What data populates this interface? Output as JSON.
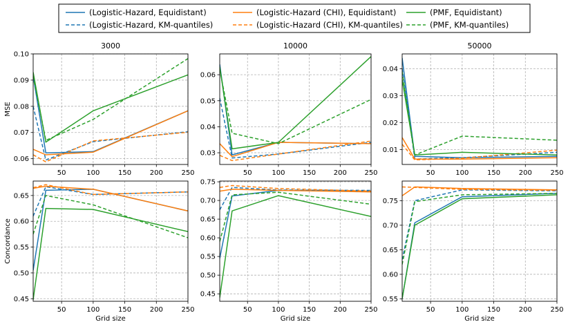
{
  "colors": {
    "logistic_hazard": "#1f77b4",
    "logistic_hazard_chi": "#ff7f0e",
    "pmf": "#2ca02c",
    "grid": "#b0b0b0"
  },
  "legend": [
    {
      "label": "(Logistic-Hazard, Equidistant)",
      "color": "#1f77b4",
      "dash": "solid"
    },
    {
      "label": "(Logistic-Hazard, KM-quantiles)",
      "color": "#1f77b4",
      "dash": "dashed"
    },
    {
      "label": "(Logistic-Hazard (CHI), Equidistant)",
      "color": "#ff7f0e",
      "dash": "solid"
    },
    {
      "label": "(Logistic-Hazard (CHI), KM-quantiles)",
      "color": "#ff7f0e",
      "dash": "dashed"
    },
    {
      "label": "(PMF, Equidistant)",
      "color": "#2ca02c",
      "dash": "solid"
    },
    {
      "label": "(PMF, KM-quantiles)",
      "color": "#2ca02c",
      "dash": "dashed"
    }
  ],
  "chart_data": [
    {
      "type": "line",
      "metric": "MSE",
      "title": "3000",
      "xlabel": "",
      "ylabel": "MSE",
      "x": [
        5,
        25,
        100,
        250
      ],
      "xlim": [
        5,
        250
      ],
      "ylim": [
        0.0578,
        0.1
      ],
      "xticks": [
        50,
        100,
        150,
        200,
        250
      ],
      "yticks": [
        0.06,
        0.07,
        0.08,
        0.09,
        0.1
      ],
      "ytick_labels": [
        "0.06",
        "0.07",
        "0.08",
        "0.09",
        "0.10"
      ],
      "series": [
        {
          "name": "(Logistic-Hazard, Equidistant)",
          "color": "#1f77b4",
          "dash": "solid",
          "values": [
            0.0915,
            0.0622,
            0.0627,
            0.0783
          ]
        },
        {
          "name": "(Logistic-Hazard, KM-quantiles)",
          "color": "#1f77b4",
          "dash": "dashed",
          "values": [
            0.08,
            0.0595,
            0.0665,
            0.0703
          ]
        },
        {
          "name": "(Logistic-Hazard (CHI), Equidistant)",
          "color": "#ff7f0e",
          "dash": "solid",
          "values": [
            0.0636,
            0.0615,
            0.0625,
            0.0783
          ]
        },
        {
          "name": "(Logistic-Hazard (CHI), KM-quantiles)",
          "color": "#ff7f0e",
          "dash": "dashed",
          "values": [
            0.0615,
            0.0588,
            0.0668,
            0.0701
          ]
        },
        {
          "name": "(PMF, Equidistant)",
          "color": "#2ca02c",
          "dash": "solid",
          "values": [
            0.093,
            0.0663,
            0.0783,
            0.092
          ]
        },
        {
          "name": "(PMF, KM-quantiles)",
          "color": "#2ca02c",
          "dash": "dashed",
          "values": [
            0.0915,
            0.067,
            0.075,
            0.0982
          ]
        }
      ]
    },
    {
      "type": "line",
      "metric": "MSE",
      "title": "10000",
      "xlabel": "",
      "ylabel": "",
      "x": [
        5,
        25,
        100,
        250
      ],
      "xlim": [
        5,
        250
      ],
      "ylim": [
        0.0255,
        0.068
      ],
      "xticks": [
        50,
        100,
        150,
        200,
        250
      ],
      "yticks": [
        0.03,
        0.04,
        0.05,
        0.06
      ],
      "ytick_labels": [
        "0.03",
        "0.04",
        "0.05",
        "0.06"
      ],
      "series": [
        {
          "name": "(Logistic-Hazard, Equidistant)",
          "color": "#1f77b4",
          "dash": "solid",
          "values": [
            0.064,
            0.0292,
            0.034,
            0.0335
          ]
        },
        {
          "name": "(Logistic-Hazard, KM-quantiles)",
          "color": "#1f77b4",
          "dash": "dashed",
          "values": [
            0.051,
            0.028,
            0.0295,
            0.034
          ]
        },
        {
          "name": "(Logistic-Hazard (CHI), Equidistant)",
          "color": "#ff7f0e",
          "dash": "solid",
          "values": [
            0.0335,
            0.0285,
            0.034,
            0.0335
          ]
        },
        {
          "name": "(Logistic-Hazard (CHI), KM-quantiles)",
          "color": "#ff7f0e",
          "dash": "dashed",
          "values": [
            0.029,
            0.027,
            0.0295,
            0.0345
          ]
        },
        {
          "name": "(PMF, Equidistant)",
          "color": "#2ca02c",
          "dash": "solid",
          "values": [
            0.063,
            0.0315,
            0.034,
            0.067
          ]
        },
        {
          "name": "(PMF, KM-quantiles)",
          "color": "#2ca02c",
          "dash": "dashed",
          "values": [
            0.062,
            0.0375,
            0.0335,
            0.0505
          ]
        }
      ]
    },
    {
      "type": "line",
      "metric": "MSE",
      "title": "50000",
      "xlabel": "",
      "ylabel": "",
      "x": [
        5,
        25,
        100,
        250
      ],
      "xlim": [
        5,
        250
      ],
      "ylim": [
        0.0045,
        0.0455
      ],
      "xticks": [
        50,
        100,
        150,
        200,
        250
      ],
      "yticks": [
        0.01,
        0.02,
        0.03,
        0.04
      ],
      "ytick_labels": [
        "0.01",
        "0.02",
        "0.03",
        "0.04"
      ],
      "series": [
        {
          "name": "(Logistic-Hazard, Equidistant)",
          "color": "#1f77b4",
          "dash": "solid",
          "values": [
            0.044,
            0.0075,
            0.007,
            0.0075
          ]
        },
        {
          "name": "(Logistic-Hazard, KM-quantiles)",
          "color": "#1f77b4",
          "dash": "dashed",
          "values": [
            0.04,
            0.0065,
            0.007,
            0.009
          ]
        },
        {
          "name": "(Logistic-Hazard (CHI), Equidistant)",
          "color": "#ff7f0e",
          "dash": "solid",
          "values": [
            0.0145,
            0.0065,
            0.0065,
            0.007
          ]
        },
        {
          "name": "(Logistic-Hazard (CHI), KM-quantiles)",
          "color": "#ff7f0e",
          "dash": "dashed",
          "values": [
            0.012,
            0.0062,
            0.0068,
            0.0098
          ]
        },
        {
          "name": "(PMF, Equidistant)",
          "color": "#2ca02c",
          "dash": "solid",
          "values": [
            0.036,
            0.008,
            0.009,
            0.008
          ]
        },
        {
          "name": "(PMF, KM-quantiles)",
          "color": "#2ca02c",
          "dash": "dashed",
          "values": [
            0.039,
            0.008,
            0.015,
            0.0135
          ]
        }
      ]
    },
    {
      "type": "line",
      "metric": "Concordance",
      "title": "",
      "xlabel": "Grid size",
      "ylabel": "Concordance",
      "x": [
        5,
        25,
        100,
        250
      ],
      "xlim": [
        5,
        250
      ],
      "ylim": [
        0.445,
        0.678
      ],
      "xticks": [
        50,
        100,
        150,
        200,
        250
      ],
      "yticks": [
        0.45,
        0.5,
        0.55,
        0.6,
        0.65
      ],
      "ytick_labels": [
        "0.45",
        "0.50",
        "0.55",
        "0.60",
        "0.65"
      ],
      "series": [
        {
          "name": "(Logistic-Hazard, Equidistant)",
          "color": "#1f77b4",
          "dash": "solid",
          "values": [
            0.505,
            0.66,
            0.662,
            0.62
          ]
        },
        {
          "name": "(Logistic-Hazard, KM-quantiles)",
          "color": "#1f77b4",
          "dash": "dashed",
          "values": [
            0.61,
            0.667,
            0.652,
            0.657
          ]
        },
        {
          "name": "(Logistic-Hazard (CHI), Equidistant)",
          "color": "#ff7f0e",
          "dash": "solid",
          "values": [
            0.664,
            0.668,
            0.662,
            0.62
          ]
        },
        {
          "name": "(Logistic-Hazard (CHI), KM-quantiles)",
          "color": "#ff7f0e",
          "dash": "dashed",
          "values": [
            0.665,
            0.671,
            0.652,
            0.657
          ]
        },
        {
          "name": "(PMF, Equidistant)",
          "color": "#2ca02c",
          "dash": "solid",
          "values": [
            0.448,
            0.625,
            0.623,
            0.58
          ]
        },
        {
          "name": "(PMF, KM-quantiles)",
          "color": "#2ca02c",
          "dash": "dashed",
          "values": [
            0.575,
            0.65,
            0.632,
            0.568
          ]
        }
      ]
    },
    {
      "type": "line",
      "metric": "Concordance",
      "title": "",
      "xlabel": "Grid size",
      "ylabel": "",
      "x": [
        5,
        25,
        100,
        250
      ],
      "xlim": [
        5,
        250
      ],
      "ylim": [
        0.43,
        0.752
      ],
      "xticks": [
        50,
        100,
        150,
        200,
        250
      ],
      "yticks": [
        0.45,
        0.5,
        0.55,
        0.6,
        0.65,
        0.7,
        0.75
      ],
      "ytick_labels": [
        "0.45",
        "0.50",
        "0.55",
        "0.60",
        "0.65",
        "0.70",
        "0.75"
      ],
      "series": [
        {
          "name": "(Logistic-Hazard, Equidistant)",
          "color": "#1f77b4",
          "dash": "solid",
          "values": [
            0.545,
            0.712,
            0.727,
            0.725
          ]
        },
        {
          "name": "(Logistic-Hazard, KM-quantiles)",
          "color": "#1f77b4",
          "dash": "dashed",
          "values": [
            0.675,
            0.735,
            0.728,
            0.727
          ]
        },
        {
          "name": "(Logistic-Hazard (CHI), Equidistant)",
          "color": "#ff7f0e",
          "dash": "solid",
          "values": [
            0.725,
            0.73,
            0.727,
            0.723
          ]
        },
        {
          "name": "(Logistic-Hazard (CHI), KM-quantiles)",
          "color": "#ff7f0e",
          "dash": "dashed",
          "values": [
            0.735,
            0.74,
            0.732,
            0.725
          ]
        },
        {
          "name": "(PMF, Equidistant)",
          "color": "#2ca02c",
          "dash": "solid",
          "values": [
            0.44,
            0.672,
            0.713,
            0.657
          ]
        },
        {
          "name": "(PMF, KM-quantiles)",
          "color": "#2ca02c",
          "dash": "dashed",
          "values": [
            0.59,
            0.715,
            0.722,
            0.69
          ]
        }
      ]
    },
    {
      "type": "line",
      "metric": "Concordance",
      "title": "",
      "xlabel": "Grid size",
      "ylabel": "",
      "x": [
        5,
        25,
        100,
        250
      ],
      "xlim": [
        5,
        250
      ],
      "ylim": [
        0.545,
        0.79
      ],
      "xticks": [
        50,
        100,
        150,
        200,
        250
      ],
      "yticks": [
        0.55,
        0.6,
        0.65,
        0.7,
        0.75
      ],
      "ytick_labels": [
        "0.55",
        "0.60",
        "0.65",
        "0.70",
        "0.75"
      ],
      "series": [
        {
          "name": "(Logistic-Hazard, Equidistant)",
          "color": "#1f77b4",
          "dash": "solid",
          "values": [
            0.55,
            0.705,
            0.758,
            0.765
          ]
        },
        {
          "name": "(Logistic-Hazard, KM-quantiles)",
          "color": "#1f77b4",
          "dash": "dashed",
          "values": [
            0.63,
            0.75,
            0.772,
            0.77
          ]
        },
        {
          "name": "(Logistic-Hazard (CHI), Equidistant)",
          "color": "#ff7f0e",
          "dash": "solid",
          "values": [
            0.76,
            0.778,
            0.775,
            0.772
          ]
        },
        {
          "name": "(Logistic-Hazard (CHI), KM-quantiles)",
          "color": "#ff7f0e",
          "dash": "dashed",
          "values": [
            0.778,
            0.777,
            0.773,
            0.771
          ]
        },
        {
          "name": "(PMF, Equidistant)",
          "color": "#2ca02c",
          "dash": "solid",
          "values": [
            0.55,
            0.7,
            0.754,
            0.762
          ]
        },
        {
          "name": "(PMF, KM-quantiles)",
          "color": "#2ca02c",
          "dash": "dashed",
          "values": [
            0.62,
            0.748,
            0.762,
            0.765
          ]
        }
      ]
    }
  ]
}
